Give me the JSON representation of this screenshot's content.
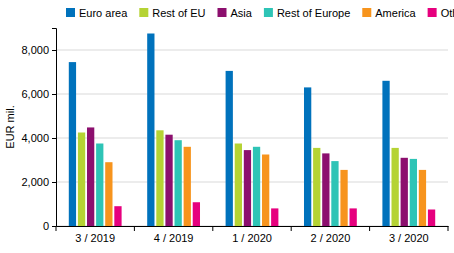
{
  "chart_data": {
    "type": "bar",
    "y_label": "EUR mil.",
    "categories": [
      "3 / 2019",
      "4 / 2019",
      "1 / 2020",
      "2 / 2020",
      "3 / 2020"
    ],
    "series": [
      {
        "name": "Euro area",
        "color": "#0072bc",
        "values": [
          7450,
          8750,
          7050,
          6300,
          6600
        ]
      },
      {
        "name": "Rest of EU",
        "color": "#b5d334",
        "values": [
          4250,
          4350,
          3750,
          3550,
          3550
        ]
      },
      {
        "name": "Asia",
        "color": "#8c0f6e",
        "values": [
          4480,
          4150,
          3450,
          3300,
          3100
        ]
      },
      {
        "name": "Rest of Europe",
        "color": "#2ec4b6",
        "values": [
          3750,
          3900,
          3600,
          2950,
          3050
        ]
      },
      {
        "name": "America",
        "color": "#f7941d",
        "values": [
          2900,
          3600,
          3250,
          2550,
          2550
        ]
      },
      {
        "name": "Other",
        "color": "#e6007e",
        "values": [
          900,
          1080,
          800,
          800,
          750
        ]
      }
    ],
    "ylim": [
      0,
      9000
    ],
    "yticks": [
      0,
      {
        "value": 2000,
        "label": "2,000"
      },
      {
        "value": 4000,
        "label": "4,000"
      },
      {
        "value": 6000,
        "label": "6,000"
      },
      {
        "value": 8000,
        "label": "8,000"
      }
    ],
    "grid": true,
    "legend": "top"
  }
}
